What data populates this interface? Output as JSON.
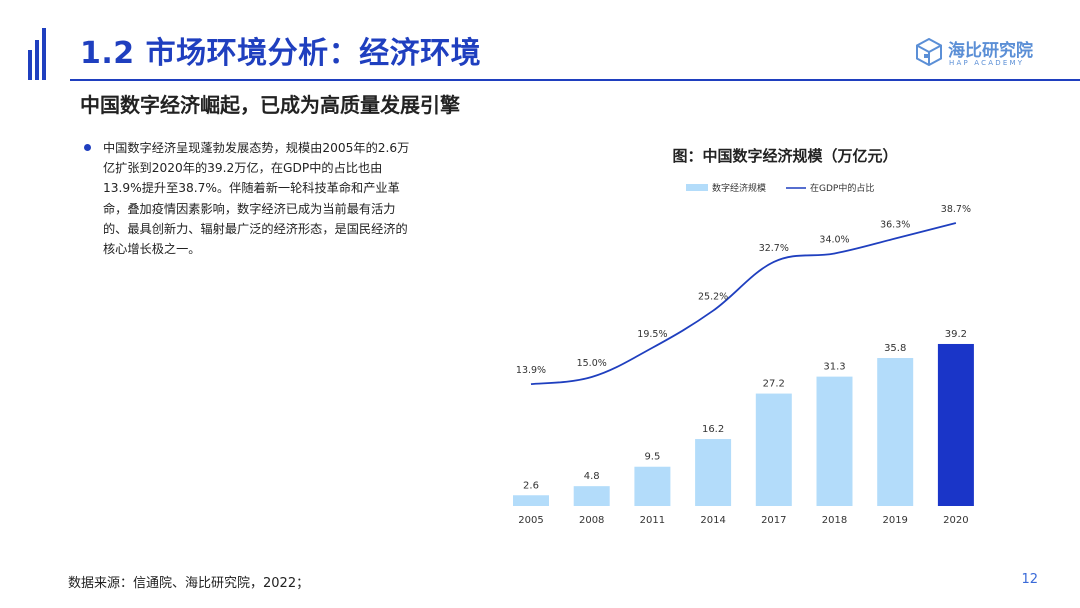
{
  "header": {
    "title": "1.2 市场环境分析：经济环境",
    "logo_name": "海比研究院",
    "logo_sub": "HAP ACADEMY"
  },
  "subtitle": "中国数字经济崛起，已成为高质量发展引擎",
  "bullet": "中国数字经济呈现蓬勃发展态势，规模由2005年的2.6万亿扩张到2020年的39.2万亿，在GDP中的占比也由13.9%提升至38.7%。伴随着新一轮科技革命和产业革命，叠加疫情因素影响，数字经济已成为当前最有活力的、最具创新力、辐射最广泛的经济形态，是国民经济的核心增长极之一。",
  "footer": {
    "source": "数据来源：信通院、海比研究院，2022；",
    "page": "12"
  },
  "colors": {
    "accent": "#1f3fbf",
    "bar_light": "#b3dcfa",
    "bar_highlight": "#1a35c8",
    "line": "#1f3fbf"
  },
  "chart_data": {
    "type": "bar",
    "title": "图：中国数字经济规模（万亿元）",
    "categories": [
      "2005",
      "2008",
      "2011",
      "2014",
      "2017",
      "2018",
      "2019",
      "2020"
    ],
    "series": [
      {
        "name": "数字经济规模",
        "type": "bar",
        "values": [
          2.6,
          4.8,
          9.5,
          16.2,
          27.2,
          31.3,
          35.8,
          39.2
        ],
        "labels": [
          "2.6",
          "4.8",
          "9.5",
          "16.2",
          "27.2",
          "31.3",
          "35.8",
          "39.2"
        ],
        "highlight_index": 7
      },
      {
        "name": "在GDP中的占比",
        "type": "line",
        "values": [
          13.9,
          15.0,
          19.5,
          25.2,
          32.7,
          34.0,
          36.3,
          38.7
        ],
        "labels": [
          "13.9%",
          "15.0%",
          "19.5%",
          "25.2%",
          "32.7%",
          "34.0%",
          "36.3%",
          "38.7%"
        ]
      }
    ],
    "ylim": [
      0,
      45
    ],
    "y2lim": [
      5,
      41
    ],
    "legend": "top",
    "grid": false,
    "xlabel": "",
    "ylabel": ""
  }
}
